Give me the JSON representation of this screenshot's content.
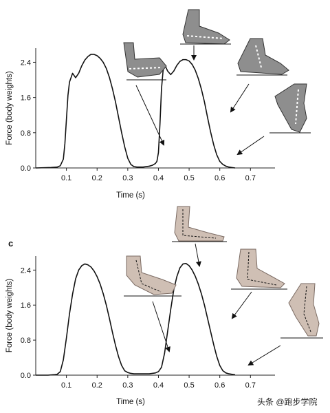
{
  "watermark": "头条 @跑步学院",
  "colors": {
    "curve": "#111111",
    "axis": "#222222",
    "skin": "#cfbfb4",
    "skin_dark": "#9c8a80",
    "shoe": "#7a7a7a"
  },
  "chart_data": [
    {
      "type": "line",
      "panel_letter": "",
      "xlabel": "Time (s)",
      "ylabel": "Force (body weights)",
      "xlim": [
        0.0,
        0.78
      ],
      "ylim": [
        0.0,
        2.72
      ],
      "x_ticks": [
        "0.1",
        "0.2",
        "0.3",
        "0.4",
        "0.5",
        "0.6",
        "0.7"
      ],
      "x_tick_values": [
        0.1,
        0.2,
        0.3,
        0.4,
        0.5,
        0.6,
        0.7
      ],
      "y_ticks": [
        "0.0",
        "0.8",
        "1.6",
        "2.4"
      ],
      "y_tick_values": [
        0.0,
        0.8,
        1.6,
        2.4
      ],
      "grid": false,
      "series": [
        {
          "x": [
            0.0,
            0.05,
            0.07,
            0.08,
            0.09,
            0.095,
            0.1,
            0.105,
            0.11,
            0.12,
            0.125,
            0.13,
            0.14,
            0.15,
            0.16,
            0.17,
            0.18,
            0.19,
            0.2,
            0.21,
            0.22,
            0.23,
            0.24,
            0.25,
            0.26,
            0.27,
            0.28,
            0.29,
            0.3,
            0.31,
            0.32,
            0.33,
            0.34,
            0.35,
            0.36,
            0.37,
            0.38,
            0.39,
            0.395,
            0.4,
            0.405,
            0.41,
            0.415,
            0.42,
            0.43,
            0.44,
            0.45,
            0.46,
            0.47,
            0.48,
            0.49,
            0.5,
            0.51,
            0.52,
            0.53,
            0.54,
            0.55,
            0.56,
            0.57,
            0.58,
            0.59,
            0.6,
            0.61,
            0.62,
            0.63,
            0.64,
            0.65
          ],
          "y": [
            0.0,
            0.01,
            0.02,
            0.05,
            0.2,
            0.55,
            1.1,
            1.65,
            1.95,
            2.15,
            2.1,
            2.05,
            2.15,
            2.32,
            2.45,
            2.53,
            2.58,
            2.58,
            2.55,
            2.49,
            2.4,
            2.26,
            2.06,
            1.8,
            1.5,
            1.15,
            0.8,
            0.48,
            0.22,
            0.08,
            0.03,
            0.02,
            0.02,
            0.02,
            0.03,
            0.04,
            0.06,
            0.1,
            0.15,
            0.35,
            1.0,
            1.8,
            2.2,
            2.35,
            2.2,
            2.12,
            2.2,
            2.33,
            2.42,
            2.46,
            2.46,
            2.43,
            2.35,
            2.22,
            2.03,
            1.79,
            1.5,
            1.15,
            0.82,
            0.53,
            0.3,
            0.15,
            0.08,
            0.04,
            0.02,
            0.01,
            0.0
          ]
        }
      ]
    },
    {
      "type": "line",
      "panel_letter": "c",
      "xlabel": "Time (s)",
      "ylabel": "Force (body weights)",
      "xlim": [
        0.0,
        0.78
      ],
      "ylim": [
        0.0,
        2.72
      ],
      "x_ticks": [
        "0.1",
        "0.2",
        "0.3",
        "0.4",
        "0.5",
        "0.6",
        "0.7"
      ],
      "x_tick_values": [
        0.1,
        0.2,
        0.3,
        0.4,
        0.5,
        0.6,
        0.7
      ],
      "y_ticks": [
        "0.0",
        "0.8",
        "1.6",
        "2.4"
      ],
      "y_tick_values": [
        0.0,
        0.8,
        1.6,
        2.4
      ],
      "grid": false,
      "series": [
        {
          "x": [
            0.0,
            0.04,
            0.06,
            0.07,
            0.08,
            0.09,
            0.1,
            0.11,
            0.12,
            0.13,
            0.14,
            0.15,
            0.16,
            0.17,
            0.18,
            0.19,
            0.2,
            0.21,
            0.22,
            0.23,
            0.24,
            0.25,
            0.26,
            0.27,
            0.28,
            0.29,
            0.3,
            0.31,
            0.32,
            0.33,
            0.34,
            0.35,
            0.36,
            0.37,
            0.38,
            0.39,
            0.4,
            0.41,
            0.42,
            0.43,
            0.44,
            0.45,
            0.46,
            0.47,
            0.48,
            0.49,
            0.5,
            0.51,
            0.52,
            0.53,
            0.54,
            0.55,
            0.56,
            0.57,
            0.58,
            0.59,
            0.6,
            0.61,
            0.62,
            0.63,
            0.64,
            0.65
          ],
          "y": [
            0.0,
            0.0,
            0.01,
            0.02,
            0.08,
            0.35,
            0.85,
            1.4,
            1.85,
            2.2,
            2.4,
            2.5,
            2.54,
            2.52,
            2.47,
            2.38,
            2.25,
            2.08,
            1.86,
            1.6,
            1.3,
            0.98,
            0.68,
            0.42,
            0.22,
            0.1,
            0.06,
            0.04,
            0.03,
            0.03,
            0.03,
            0.03,
            0.03,
            0.03,
            0.04,
            0.05,
            0.08,
            0.18,
            0.5,
            1.0,
            1.5,
            1.95,
            2.25,
            2.45,
            2.54,
            2.55,
            2.5,
            2.4,
            2.26,
            2.08,
            1.86,
            1.6,
            1.3,
            1.0,
            0.7,
            0.43,
            0.22,
            0.1,
            0.05,
            0.03,
            0.02,
            0.01
          ]
        }
      ]
    }
  ]
}
